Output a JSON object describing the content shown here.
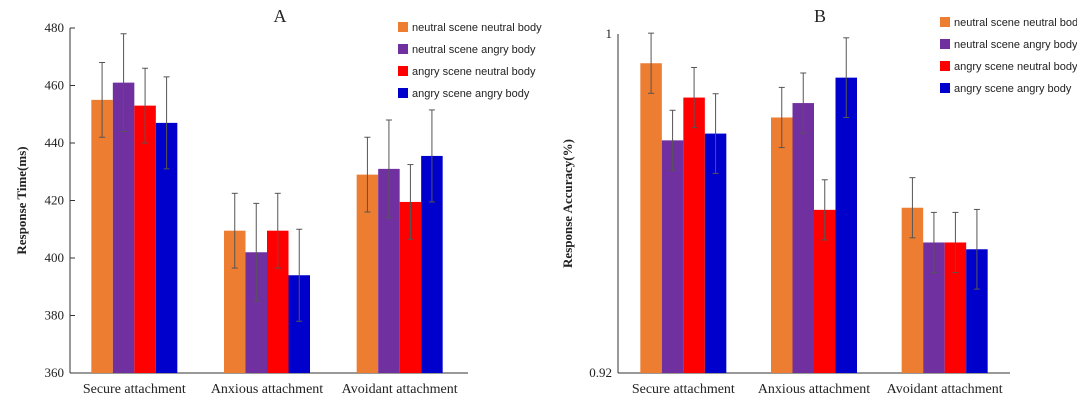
{
  "chart_data": [
    {
      "type": "bar",
      "title": "A",
      "xlabel": "",
      "ylabel": "Response Time(ms)",
      "ylim": [
        360,
        480
      ],
      "yticks": [
        "360",
        "380",
        "400",
        "420",
        "440",
        "460",
        "480"
      ],
      "categories": [
        "Secure attachment",
        "Anxious attachment",
        "Avoidant attachment"
      ],
      "legend_position": "top-right",
      "series": [
        {
          "name": "neutral scene neutral body",
          "color": "#ED7D31",
          "values": [
            455,
            409.5,
            429
          ],
          "errors": [
            13,
            13,
            13
          ]
        },
        {
          "name": "neutral scene angry body",
          "color": "#7030A0",
          "values": [
            461,
            402,
            431
          ],
          "errors": [
            17,
            17,
            17
          ]
        },
        {
          "name": "angry scene neutral body",
          "color": "#FF0000",
          "values": [
            453,
            409.5,
            419.5
          ],
          "errors": [
            13,
            13,
            13
          ]
        },
        {
          "name": "angry scene angry body",
          "color": "#0000CC",
          "values": [
            447,
            394,
            435.5
          ],
          "errors": [
            16,
            16,
            16
          ]
        }
      ]
    },
    {
      "type": "bar",
      "title": "B",
      "xlabel": "",
      "ylabel": "Response Accuracy(%)",
      "ylim": [
        0.92,
        1.0
      ],
      "yticks": [
        "0.92",
        "1"
      ],
      "categories": [
        "Secure attachment",
        "Anxious attachment",
        "Avoidant attachment"
      ],
      "legend_position": "top-right",
      "series": [
        {
          "name": "neutral scene neutral body",
          "color": "#ED7D31",
          "values": [
            0.9931,
            0.9803,
            0.959
          ],
          "errors": [
            0.0071,
            0.0071,
            0.0071
          ]
        },
        {
          "name": "neutral scene angry body",
          "color": "#7030A0",
          "values": [
            0.9749,
            0.9837,
            0.9508
          ],
          "errors": [
            0.0071,
            0.0071,
            0.0071
          ]
        },
        {
          "name": "angry scene neutral body",
          "color": "#FF0000",
          "values": [
            0.985,
            0.9585,
            0.9508
          ],
          "errors": [
            0.0071,
            0.0071,
            0.0071
          ]
        },
        {
          "name": "angry scene angry body",
          "color": "#0000CC",
          "values": [
            0.9765,
            0.9897,
            0.9492
          ],
          "errors": [
            0.0094,
            0.0094,
            0.0094
          ]
        }
      ]
    }
  ]
}
